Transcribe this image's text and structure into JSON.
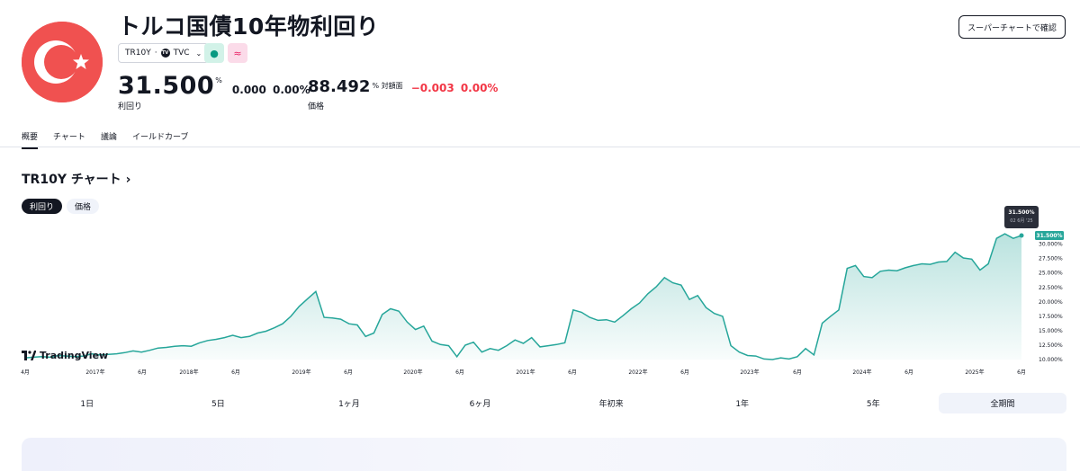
{
  "header": {
    "title": "トルコ国債10年物利回り",
    "symbol": "TR10Y",
    "separator": "·",
    "exchange": "TVC",
    "exchange_icon_text": "TV",
    "confirm_button": "スーパーチャートで確認"
  },
  "quote": {
    "value": "31.500",
    "unit": "%",
    "change": "0.000",
    "change_pct": "0.00%",
    "label": "利回り",
    "price_value": "88.492",
    "price_unit": "% 対額面",
    "price_change": "−0.003",
    "price_change_pct": "0.00%",
    "price_label": "価格"
  },
  "tabs": [
    {
      "label": "概要",
      "active": true
    },
    {
      "label": "チャート",
      "active": false
    },
    {
      "label": "議論",
      "active": false
    },
    {
      "label": "イールドカーブ",
      "active": false
    }
  ],
  "chart_section": {
    "heading": "TR10Y チャート",
    "heading_arrow": "›",
    "toggle": [
      {
        "label": "利回り",
        "active": true
      },
      {
        "label": "価格",
        "active": false
      }
    ],
    "watermark": "TradingView",
    "tooltip_value": "31.500%",
    "tooltip_date": "02 6月 '25",
    "last_price_label": "31.500%"
  },
  "ranges": [
    {
      "label": "1日",
      "active": false
    },
    {
      "label": "5日",
      "active": false
    },
    {
      "label": "1ヶ月",
      "active": false
    },
    {
      "label": "6ヶ月",
      "active": false
    },
    {
      "label": "年初来",
      "active": false
    },
    {
      "label": "1年",
      "active": false
    },
    {
      "label": "5年",
      "active": false
    },
    {
      "label": "全期間",
      "active": true
    }
  ],
  "colors": {
    "flag_red": "#f05150",
    "line": "#26a69a",
    "negative": "#f23645",
    "accent_dark": "#131722"
  },
  "chart_data": {
    "type": "area",
    "series": [
      {
        "values": [
          10.3,
          10.4,
          10.5,
          10.4,
          10.7,
          10.6,
          10.5,
          10.6,
          11.0,
          10.8,
          10.9,
          11.0,
          11.2,
          11.5,
          11.3,
          11.6,
          12.0,
          12.1,
          12.3,
          12.4,
          12.3,
          12.9,
          13.3,
          13.5,
          13.8,
          14.2,
          13.8,
          14.0,
          14.6,
          14.9,
          15.5,
          16.2,
          17.5,
          19.2,
          20.5,
          21.8,
          17.3,
          17.2,
          17.0,
          16.2,
          16.0,
          14.0,
          14.6,
          17.8,
          18.8,
          18.4,
          16.5,
          15.2,
          15.8,
          13.2,
          12.6,
          12.4,
          10.5,
          12.5,
          13.0,
          11.3,
          11.9,
          11.6,
          12.4,
          13.4,
          12.8,
          13.8,
          12.2,
          12.4,
          12.6,
          12.9,
          18.6,
          18.2,
          17.3,
          16.8,
          16.9,
          16.5,
          17.6,
          18.8,
          19.8,
          21.4,
          22.6,
          24.2,
          23.3,
          22.9,
          20.4,
          21.1,
          19.0,
          18.0,
          17.5,
          12.4,
          11.3,
          10.7,
          10.6,
          10.1,
          10.0,
          10.3,
          10.1,
          10.5,
          11.9,
          10.8,
          16.3,
          17.5,
          18.6,
          25.8,
          26.3,
          24.4,
          24.2,
          25.3,
          25.5,
          25.4,
          25.9,
          26.3,
          26.6,
          26.5,
          26.9,
          27.0,
          28.6,
          27.6,
          27.4,
          25.5,
          26.6,
          31.0,
          31.8,
          31.0,
          31.5
        ]
      }
    ],
    "x_tick_labels": [
      "4月",
      "2017年",
      "6月",
      "2018年",
      "6月",
      "2019年",
      "6月",
      "2020年",
      "6月",
      "2021年",
      "6月",
      "2022年",
      "6月",
      "2023年",
      "6月",
      "2024年",
      "6月",
      "2025年",
      "6月"
    ],
    "y_tick_labels": [
      "30.000%",
      "27.500%",
      "25.000%",
      "22.500%",
      "20.000%",
      "17.500%",
      "15.000%",
      "12.500%",
      "10.000%"
    ],
    "y_ticks": [
      30,
      27.5,
      25,
      22.5,
      20,
      17.5,
      15,
      12.5,
      10
    ],
    "ylim": [
      10,
      31.5
    ],
    "last_value": 31.5,
    "grid": false,
    "title": "",
    "xlabel": "",
    "ylabel": ""
  }
}
